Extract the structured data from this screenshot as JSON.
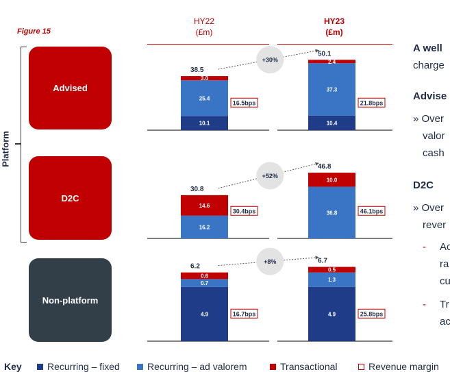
{
  "figure_label": "Figure 15",
  "column_headers": [
    {
      "line1": "HY22",
      "line2": "(£m)"
    },
    {
      "line1": "HY23",
      "line2": "(£m)"
    }
  ],
  "platform_label": "Platform",
  "segments": [
    {
      "label": "Advised"
    },
    {
      "label": "D2C"
    },
    {
      "label": "Non-platform"
    }
  ],
  "colors": {
    "recurring_fixed": "#1f3c88",
    "recurring_ad_valorem": "#3a74c4",
    "transactional": "#c00000",
    "accent_red": "#c00000",
    "dark_box": "#333f48",
    "growth_bubble": "#e3e3e3"
  },
  "chart_data": {
    "type": "bar",
    "stacked": true,
    "panels": [
      {
        "segment": "Advised",
        "ymax": 60,
        "growth_label": "+30%",
        "bars": [
          {
            "period": "HY22",
            "total_label": "38.5",
            "values": [
              10.1,
              25.4,
              3.0
            ],
            "labels": [
              "10.1",
              "25.4",
              "3.0"
            ],
            "margin": "16.5bps"
          },
          {
            "period": "HY23",
            "total_label": "50.1",
            "values": [
              10.4,
              37.3,
              2.4
            ],
            "labels": [
              "10.4",
              "37.3",
              "2.4"
            ],
            "margin": "21.8bps"
          }
        ]
      },
      {
        "segment": "D2C",
        "ymax": 60,
        "growth_label": "+52%",
        "bars": [
          {
            "period": "HY22",
            "total_label": "30.8",
            "values": [
              0,
              16.2,
              14.6
            ],
            "labels": [
              "",
              "16.2",
              "14.6"
            ],
            "margin": "30.4bps"
          },
          {
            "period": "HY23",
            "total_label": "46.8",
            "values": [
              0,
              36.8,
              10.0
            ],
            "labels": [
              "",
              "36.8",
              "10.0"
            ],
            "margin": "46.1bps"
          }
        ]
      },
      {
        "segment": "Non-platform",
        "ymax": 7.6,
        "growth_label": "+8%",
        "bars": [
          {
            "period": "HY22",
            "total_label": "6.2",
            "values": [
              4.9,
              0.7,
              0.6
            ],
            "labels": [
              "4.9",
              "0.7",
              "0.6"
            ],
            "margin": "16.7bps"
          },
          {
            "period": "HY23",
            "total_label": "6.7",
            "values": [
              4.9,
              1.3,
              0.5
            ],
            "labels": [
              "4.9",
              "1.3",
              "0.5"
            ],
            "margin": "25.8bps"
          }
        ]
      }
    ],
    "series": [
      {
        "name": "Recurring – fixed"
      },
      {
        "name": "Recurring – ad valorem"
      },
      {
        "name": "Transactional"
      }
    ],
    "legend_title": "Key",
    "legend_extra": "Revenue margin"
  },
  "side_panel": {
    "line1": "A well",
    "line2": "charge",
    "advised_head": "Advise",
    "advised_b1": "» Over",
    "advised_b2": "valor",
    "advised_b3": "cash",
    "d2c_head": "D2C",
    "d2c_b1": "» Over",
    "d2c_b2": "rever",
    "d2c_s1a": "-",
    "d2c_s1b": "Ac",
    "d2c_s1c": "ra",
    "d2c_s1d": "cu",
    "d2c_s2a": "-",
    "d2c_s2b": "Tr",
    "d2c_s2c": "ac"
  }
}
